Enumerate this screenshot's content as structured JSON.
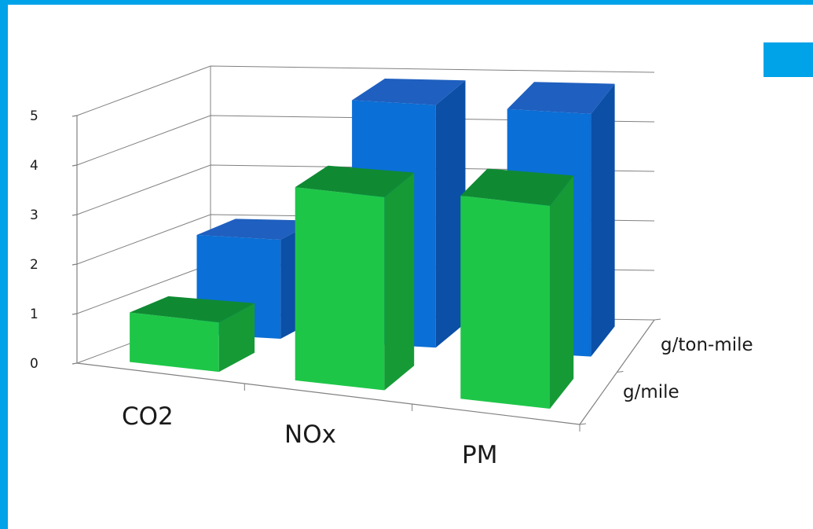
{
  "colors": {
    "frame": "#00a2e8",
    "ton_mile_front": "#0a6fd6",
    "ton_mile_side": "#0b4fa6",
    "ton_mile_top": "#1f5fbf",
    "mile_front": "#1ec648",
    "mile_side": "#169a36",
    "mile_top": "#0f8a33",
    "grid": "#808080"
  },
  "chart_data": {
    "type": "bar",
    "subtype": "3d-clustered-depth",
    "categories": [
      "CO2",
      "NOx",
      "PM"
    ],
    "series": [
      {
        "name": "g/ton-mile",
        "values": [
          2.0,
          4.9,
          4.9
        ]
      },
      {
        "name": "g/mile",
        "values": [
          1.0,
          3.9,
          4.1
        ]
      }
    ],
    "ylim": [
      0,
      5
    ],
    "yticks": [
      "0",
      "1",
      "2",
      "3",
      "4",
      "5"
    ],
    "grid": true,
    "legend": "none"
  }
}
